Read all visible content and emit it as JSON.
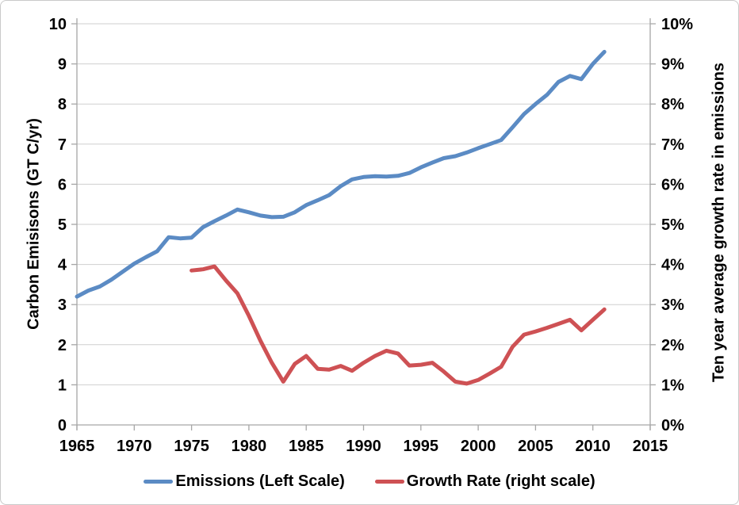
{
  "figure": {
    "background": "#ffffff",
    "border_color": "#c9c9c9"
  },
  "chart_data": {
    "type": "line",
    "title": "",
    "grid": "horizontal",
    "legend_position": "bottom",
    "gridline_color": "#cfcfcf",
    "axis_line_color": "#a6a6a6",
    "x_axis": {
      "range": [
        1965,
        2015
      ],
      "tick_step": 5,
      "tick_labels": [
        "1965",
        "1970",
        "1975",
        "1980",
        "1985",
        "1990",
        "1995",
        "2000",
        "2005",
        "2010",
        "2015"
      ]
    },
    "left_axis": {
      "label": "Carbon Emisisons (GT C/yr)",
      "range": [
        0,
        10
      ],
      "tick_labels": [
        "0",
        "1",
        "2",
        "3",
        "4",
        "5",
        "6",
        "7",
        "8",
        "9",
        "10"
      ]
    },
    "right_axis": {
      "label": "Ten year average growth rate in emissions",
      "range": [
        0,
        10
      ],
      "tick_labels": [
        "0%",
        "1%",
        "2%",
        "3%",
        "4%",
        "5%",
        "6%",
        "7%",
        "8%",
        "9%",
        "10%"
      ]
    },
    "series": [
      {
        "name": "Emissions (Left Scale)",
        "axis": "left",
        "color": "#5B8BC4",
        "x": [
          1965,
          1966,
          1967,
          1968,
          1969,
          1970,
          1971,
          1972,
          1973,
          1974,
          1975,
          1976,
          1977,
          1978,
          1979,
          1980,
          1981,
          1982,
          1983,
          1984,
          1985,
          1986,
          1987,
          1988,
          1989,
          1990,
          1991,
          1992,
          1993,
          1994,
          1995,
          1996,
          1997,
          1998,
          1999,
          2000,
          2001,
          2002,
          2003,
          2004,
          2005,
          2006,
          2007,
          2008,
          2009,
          2010,
          2011
        ],
        "values": [
          3.2,
          3.35,
          3.45,
          3.62,
          3.82,
          4.02,
          4.18,
          4.33,
          4.68,
          4.65,
          4.67,
          4.93,
          5.08,
          5.22,
          5.37,
          5.3,
          5.22,
          5.18,
          5.19,
          5.3,
          5.48,
          5.6,
          5.73,
          5.95,
          6.12,
          6.18,
          6.2,
          6.19,
          6.21,
          6.28,
          6.42,
          6.54,
          6.65,
          6.7,
          6.79,
          6.9,
          7.0,
          7.1,
          7.42,
          7.75,
          8.0,
          8.23,
          8.55,
          8.7,
          8.62,
          9.0,
          9.3
        ]
      },
      {
        "name": "Growth Rate (right scale)",
        "axis": "right",
        "color": "#CE5154",
        "x": [
          1975,
          1976,
          1977,
          1978,
          1979,
          1980,
          1981,
          1982,
          1983,
          1984,
          1985,
          1986,
          1987,
          1988,
          1989,
          1990,
          1991,
          1992,
          1993,
          1994,
          1995,
          1996,
          1997,
          1998,
          1999,
          2000,
          2001,
          2002,
          2003,
          2004,
          2005,
          2006,
          2007,
          2008,
          2009,
          2010,
          2011
        ],
        "values": [
          3.85,
          3.88,
          3.95,
          3.6,
          3.28,
          2.72,
          2.1,
          1.55,
          1.08,
          1.52,
          1.72,
          1.4,
          1.38,
          1.47,
          1.35,
          1.55,
          1.72,
          1.85,
          1.78,
          1.48,
          1.5,
          1.55,
          1.33,
          1.08,
          1.03,
          1.12,
          1.28,
          1.45,
          1.95,
          2.25,
          2.33,
          2.42,
          2.52,
          2.62,
          2.36,
          2.62,
          2.88
        ]
      }
    ]
  }
}
